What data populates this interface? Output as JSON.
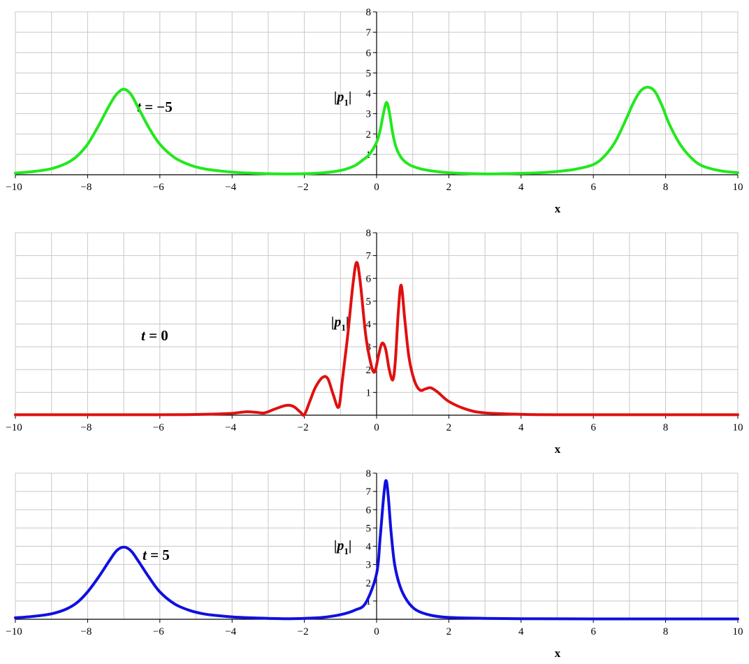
{
  "chart_data": [
    {
      "type": "line",
      "title": "",
      "xlabel": "x",
      "ylabel": "|p",
      "ylabel_sub": "1",
      "ylabel_close": "|",
      "annotation": "t = −5",
      "annotation_t": "t",
      "annotation_rest": " = −5",
      "xlim": [
        -10,
        10
      ],
      "ylim": [
        0,
        8
      ],
      "x_ticks": [
        "-10",
        "-8",
        "-6",
        "-4",
        "-2",
        "0",
        "2",
        "4",
        "6",
        "8",
        "10"
      ],
      "y_ticks": [
        "1",
        "2",
        "3",
        "4",
        "5",
        "6",
        "7",
        "8"
      ],
      "grid": true,
      "color": "#22e81e",
      "series": [
        {
          "x": [
            -10,
            -9.5,
            -9,
            -8.6,
            -8.3,
            -8,
            -7.7,
            -7.4,
            -7.2,
            -7,
            -6.8,
            -6.6,
            -6.3,
            -6,
            -5.6,
            -5.2,
            -4.8,
            -4.4,
            -4,
            -3.5,
            -3,
            -2.5,
            -2,
            -1.6,
            -1.2,
            -0.9,
            -0.6,
            -0.4,
            -0.2,
            0,
            0.1,
            0.2,
            0.28,
            0.36,
            0.45,
            0.55,
            0.7,
            0.9,
            1.2,
            1.6,
            2,
            2.5,
            3,
            3.5,
            4,
            4.5,
            5,
            5.5,
            6,
            6.3,
            6.6,
            6.9,
            7.1,
            7.3,
            7.5,
            7.7,
            7.9,
            8.1,
            8.4,
            8.7,
            9,
            9.5,
            10
          ],
          "y": [
            0.08,
            0.16,
            0.3,
            0.55,
            0.9,
            1.5,
            2.4,
            3.4,
            3.95,
            4.2,
            3.95,
            3.3,
            2.3,
            1.5,
            0.85,
            0.5,
            0.3,
            0.2,
            0.13,
            0.08,
            0.05,
            0.04,
            0.05,
            0.08,
            0.15,
            0.25,
            0.45,
            0.7,
            1.0,
            1.6,
            2.2,
            3.1,
            3.55,
            3.0,
            2.0,
            1.3,
            0.8,
            0.5,
            0.3,
            0.17,
            0.1,
            0.06,
            0.04,
            0.05,
            0.07,
            0.1,
            0.16,
            0.27,
            0.5,
            0.9,
            1.6,
            2.7,
            3.5,
            4.1,
            4.3,
            4.1,
            3.4,
            2.5,
            1.5,
            0.85,
            0.45,
            0.2,
            0.1
          ]
        }
      ]
    },
    {
      "type": "line",
      "title": "",
      "xlabel": "x",
      "ylabel": "|p",
      "ylabel_sub": "1",
      "ylabel_close": "|",
      "annotation": "t = 0",
      "annotation_t": "t",
      "annotation_rest": " = 0",
      "xlim": [
        -10,
        10
      ],
      "ylim": [
        0,
        8
      ],
      "x_ticks": [
        "-10",
        "-8",
        "-6",
        "-4",
        "-2",
        "0",
        "2",
        "4",
        "6",
        "8",
        "10"
      ],
      "y_ticks": [
        "1",
        "2",
        "3",
        "4",
        "5",
        "6",
        "7",
        "8"
      ],
      "grid": true,
      "color": "#e01010",
      "series": [
        {
          "x": [
            -10,
            -6,
            -5,
            -4.5,
            -4,
            -3.6,
            -3.3,
            -3.1,
            -2.8,
            -2.5,
            -2.3,
            -2.1,
            -2,
            -1.85,
            -1.7,
            -1.5,
            -1.35,
            -1.2,
            -1.05,
            -0.95,
            -0.8,
            -0.65,
            -0.55,
            -0.45,
            -0.3,
            -0.15,
            -0.05,
            0.05,
            0.15,
            0.25,
            0.35,
            0.45,
            0.52,
            0.6,
            0.68,
            0.78,
            0.9,
            1.05,
            1.2,
            1.35,
            1.5,
            1.7,
            2,
            2.5,
            3,
            4,
            5,
            10
          ],
          "y": [
            0.02,
            0.02,
            0.03,
            0.05,
            0.08,
            0.15,
            0.12,
            0.1,
            0.28,
            0.43,
            0.38,
            0.12,
            0.02,
            0.6,
            1.2,
            1.65,
            1.6,
            0.9,
            0.35,
            1.5,
            3.5,
            5.8,
            6.7,
            5.8,
            3.5,
            2.2,
            1.9,
            2.6,
            3.15,
            2.9,
            2.0,
            1.55,
            2.4,
            4.5,
            5.7,
            4.2,
            2.5,
            1.5,
            1.1,
            1.15,
            1.2,
            1.0,
            0.6,
            0.25,
            0.1,
            0.04,
            0.02,
            0.02
          ]
        }
      ]
    },
    {
      "type": "line",
      "title": "",
      "xlabel": "x",
      "ylabel": "|p",
      "ylabel_sub": "1",
      "ylabel_close": "|",
      "annotation": "t = 5",
      "annotation_t": "t",
      "annotation_rest": " = 5",
      "xlim": [
        -10,
        10
      ],
      "ylim": [
        0,
        8
      ],
      "x_ticks": [
        "-10",
        "-8",
        "-6",
        "-4",
        "-2",
        "0",
        "2",
        "4",
        "6",
        "8",
        "10"
      ],
      "y_ticks": [
        "1",
        "2",
        "3",
        "4",
        "5",
        "6",
        "7",
        "8"
      ],
      "grid": true,
      "color": "#1010e0",
      "series": [
        {
          "x": [
            -10,
            -9.5,
            -9,
            -8.6,
            -8.3,
            -8,
            -7.7,
            -7.4,
            -7.2,
            -7,
            -6.8,
            -6.6,
            -6.3,
            -6,
            -5.6,
            -5.2,
            -4.8,
            -4.4,
            -4,
            -3.5,
            -3,
            -2.5,
            -2,
            -1.5,
            -1,
            -0.6,
            -0.3,
            0,
            0.1,
            0.2,
            0.26,
            0.32,
            0.4,
            0.5,
            0.65,
            0.85,
            1.1,
            1.5,
            2,
            3,
            4,
            6,
            8,
            10
          ],
          "y": [
            0.08,
            0.16,
            0.3,
            0.55,
            0.9,
            1.5,
            2.3,
            3.2,
            3.75,
            3.95,
            3.75,
            3.2,
            2.3,
            1.5,
            0.85,
            0.5,
            0.3,
            0.2,
            0.13,
            0.08,
            0.05,
            0.03,
            0.05,
            0.1,
            0.25,
            0.5,
            0.9,
            2.5,
            4.5,
            6.8,
            7.6,
            6.8,
            4.8,
            3.0,
            1.8,
            1.0,
            0.5,
            0.22,
            0.1,
            0.05,
            0.03,
            0.02,
            0.02,
            0.02
          ]
        }
      ]
    }
  ]
}
